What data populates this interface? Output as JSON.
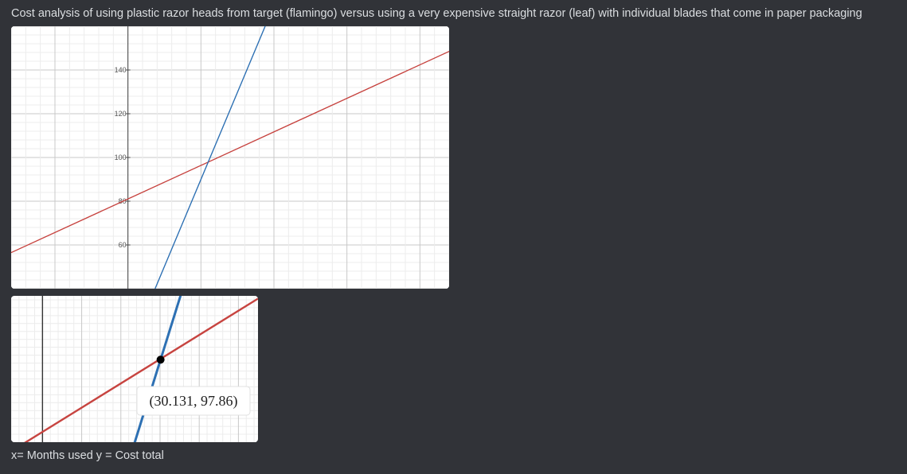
{
  "message": {
    "text": "Cost analysis of using plastic razor heads from target (flamingo) versus using a very expensive straight razor (leaf) with individual blades that come in paper packaging",
    "caption": "x= Months used y = Cost total"
  },
  "colors": {
    "background": "#313338",
    "text": "#dbdee1",
    "flamingo_line": "#c74440",
    "leaf_line": "#2d70b3",
    "grid_major": "#c8c8c8",
    "grid_minor": "#ececec"
  },
  "chart_data": [
    {
      "type": "line",
      "title": "",
      "y_tick_labels": [
        "140",
        "120",
        "100",
        "80",
        "60"
      ],
      "ylim": [
        40,
        160
      ],
      "xlim": [
        -40,
        110
      ],
      "grid": true,
      "series": [
        {
          "points": [
            [
              -40,
              56.5
            ],
            [
              110,
              148.5
            ]
          ],
          "color": "#c74440"
        },
        {
          "points": [
            [
              9.3,
              40
            ],
            [
              47,
              160
            ]
          ],
          "color": "#2d70b3"
        }
      ],
      "intersection": {
        "x": 30.131,
        "y": 97.86
      }
    },
    {
      "type": "line",
      "title": "",
      "xlim": [
        -8,
        55
      ],
      "ylim": [
        77,
        114
      ],
      "grid": true,
      "series": [
        {
          "points": [
            [
              -8,
              74.7
            ],
            [
              55,
              113.3
            ]
          ],
          "color": "#c74440"
        },
        {
          "points": [
            [
              20.4,
              67
            ],
            [
              39,
              126
            ]
          ],
          "color": "#2d70b3"
        }
      ],
      "intersection": {
        "x": 30.131,
        "y": 97.86
      },
      "point_label": "(30.131, 97.86)"
    }
  ]
}
